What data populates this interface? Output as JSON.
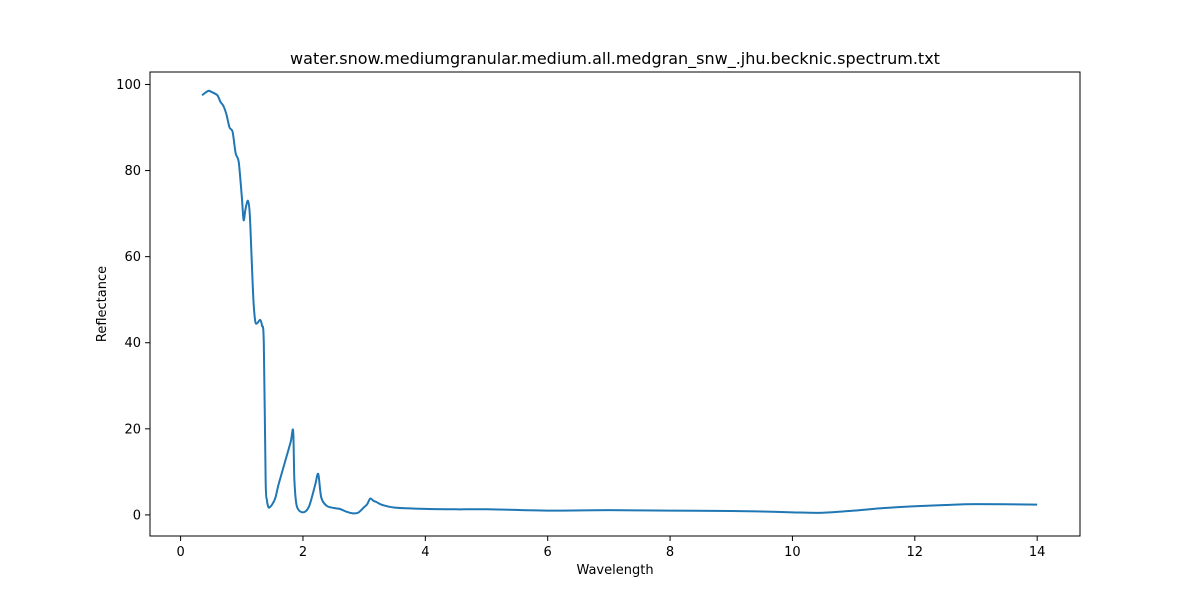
{
  "chart_data": {
    "type": "line",
    "title": "water.snow.mediumgranular.medium.all.medgran_snw_.jhu.becknic.spectrum.txt",
    "xlabel": "Wavelength",
    "ylabel": "Reflectance",
    "xlim": [
      -0.5,
      14.7
    ],
    "ylim": [
      -4.9,
      102.9
    ],
    "xticks": [
      0,
      2,
      4,
      6,
      8,
      10,
      12,
      14
    ],
    "yticks": [
      0,
      20,
      40,
      60,
      80,
      100
    ],
    "grid": false,
    "line_color": "#1f77b4",
    "series": [
      {
        "x": [
          0.35,
          0.45,
          0.5,
          0.6,
          0.65,
          0.7,
          0.75,
          0.8,
          0.85,
          0.9,
          0.95,
          1.0,
          1.03,
          1.06,
          1.1,
          1.13,
          1.16,
          1.19,
          1.22,
          1.25,
          1.3,
          1.33,
          1.36,
          1.39,
          1.41,
          1.43,
          1.45,
          1.5,
          1.55,
          1.6,
          1.7,
          1.8,
          1.84,
          1.86,
          1.9,
          2.0,
          2.1,
          2.2,
          2.25,
          2.3,
          2.4,
          2.6,
          2.7,
          2.8,
          2.9,
          3.0,
          3.05,
          3.1,
          3.15,
          3.2,
          3.3,
          3.5,
          4.0,
          4.5,
          5.0,
          6.0,
          7.0,
          8.0,
          9.0,
          9.5,
          10.0,
          10.5,
          11.0,
          11.5,
          12.0,
          12.5,
          13.0,
          14.0
        ],
        "y": [
          97.5,
          98.5,
          98.3,
          97.5,
          96.0,
          95.0,
          93.0,
          90.0,
          89.0,
          84.0,
          82.0,
          74.0,
          68.5,
          71.0,
          73.0,
          70.0,
          60.0,
          50.0,
          45.0,
          44.5,
          45.3,
          44.0,
          40.0,
          8.0,
          3.5,
          2.0,
          1.7,
          2.5,
          4.0,
          7.0,
          12.0,
          17.0,
          19.5,
          8.0,
          2.0,
          0.6,
          2.0,
          7.0,
          9.5,
          4.0,
          2.0,
          1.4,
          0.8,
          0.4,
          0.5,
          1.8,
          2.5,
          3.8,
          3.3,
          3.0,
          2.3,
          1.7,
          1.4,
          1.3,
          1.3,
          1.0,
          1.1,
          1.0,
          0.9,
          0.8,
          0.6,
          0.5,
          1.0,
          1.6,
          2.0,
          2.3,
          2.5,
          2.4
        ]
      }
    ]
  }
}
